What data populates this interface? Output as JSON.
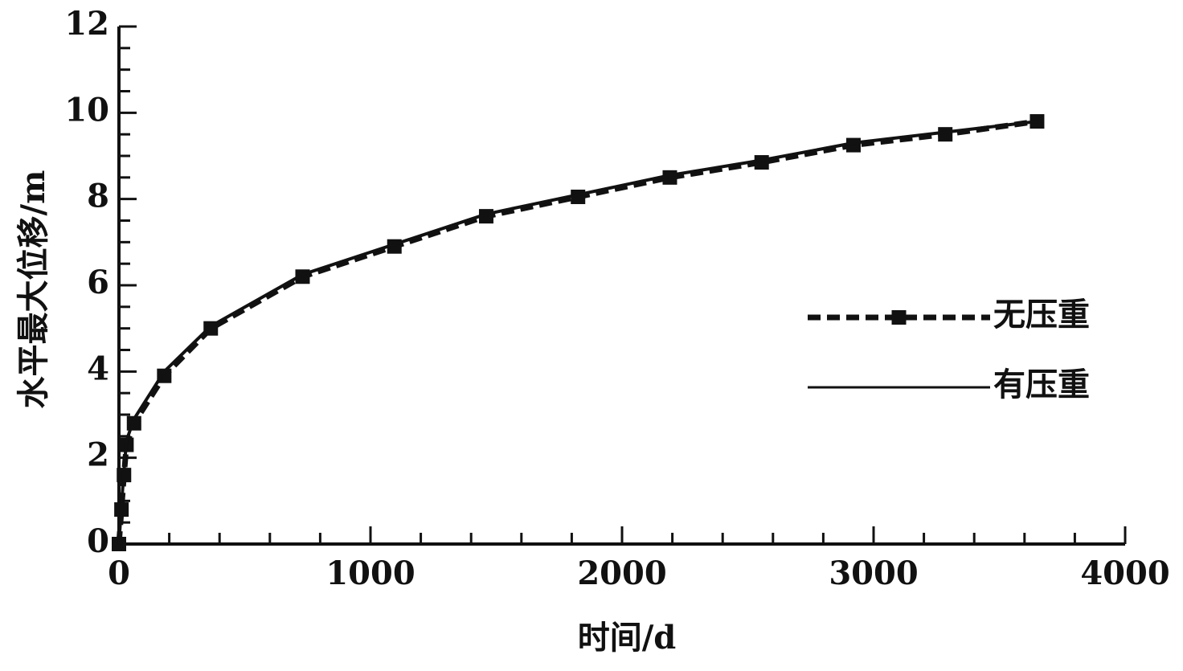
{
  "chart_data": {
    "type": "line",
    "x_label": "时间/d",
    "y_label": "水平最大位移/m",
    "x": [
      0,
      10,
      20,
      30,
      60,
      180,
      365,
      730,
      1095,
      1460,
      1825,
      2190,
      2555,
      2920,
      3285,
      3650
    ],
    "series": [
      {
        "name": "无压重",
        "color": "#111111",
        "style": "dashed",
        "marker": "square",
        "values": [
          0,
          0.8,
          1.6,
          2.3,
          2.8,
          3.9,
          5.0,
          6.2,
          6.9,
          7.6,
          8.05,
          8.5,
          8.85,
          9.25,
          9.5,
          9.8
        ]
      },
      {
        "name": "有压重",
        "color": "#111111",
        "style": "solid",
        "values": [
          0,
          0.9,
          1.7,
          2.4,
          2.9,
          4.0,
          5.05,
          6.25,
          6.95,
          7.65,
          8.1,
          8.55,
          8.9,
          9.3,
          9.55,
          9.8
        ]
      }
    ],
    "xlim": [
      0,
      4000
    ],
    "xticks": [
      0,
      1000,
      2000,
      3000,
      4000
    ],
    "ylim": [
      0,
      12
    ],
    "yticks": [
      0,
      2,
      4,
      6,
      8,
      10,
      12
    ],
    "grid": false,
    "legend": "right"
  }
}
